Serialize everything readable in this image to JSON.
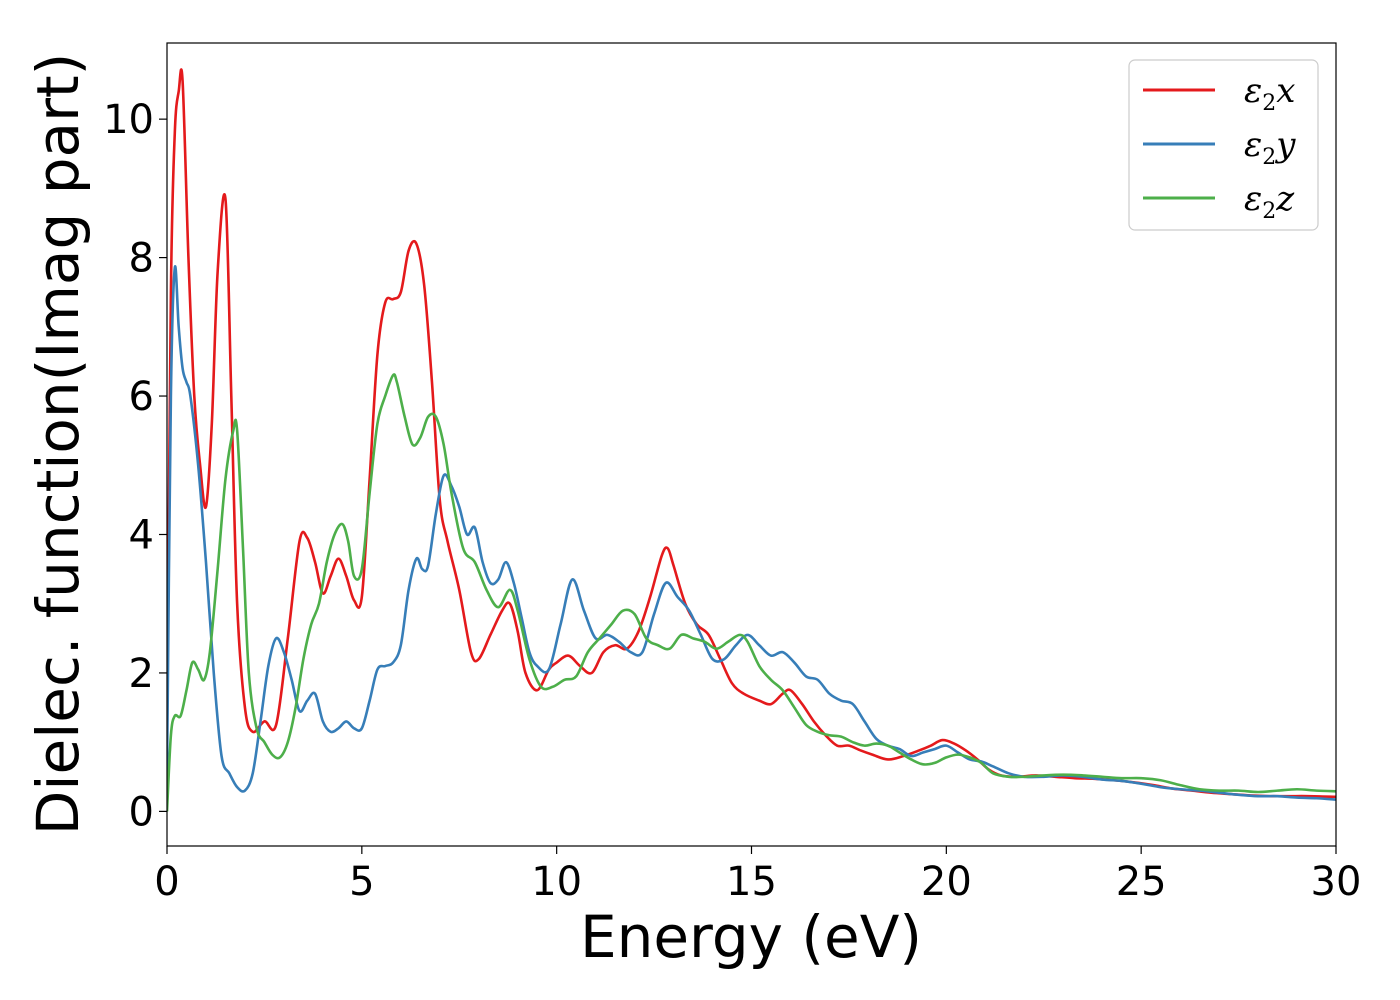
{
  "chart_data": {
    "type": "line",
    "title": "",
    "xlabel": "Energy (eV)",
    "ylabel": "Dielec. function(Imag part)",
    "xlim": [
      0,
      30
    ],
    "ylim": [
      -0.5,
      11.1
    ],
    "xticks": [
      0,
      5,
      10,
      15,
      20,
      25,
      30
    ],
    "yticks": [
      0,
      2,
      4,
      6,
      8,
      10
    ],
    "xtick_labels": [
      "0",
      "5",
      "10",
      "15",
      "20",
      "25",
      "30"
    ],
    "ytick_labels": [
      "0",
      "2",
      "4",
      "6",
      "8",
      "10"
    ],
    "grid": false,
    "legend_position": "top-right",
    "series": [
      {
        "name": "ε₂x",
        "legend_base": "ε",
        "legend_sub": "2",
        "legend_suffix": "x",
        "color": "#e41a1c",
        "x": [
          0,
          0.1,
          0.2,
          0.3,
          0.4,
          0.55,
          0.7,
          0.85,
          1.0,
          1.15,
          1.3,
          1.5,
          1.65,
          1.8,
          2.0,
          2.2,
          2.5,
          2.8,
          3.1,
          3.4,
          3.6,
          3.8,
          4.0,
          4.2,
          4.4,
          4.6,
          4.8,
          5.0,
          5.2,
          5.4,
          5.6,
          5.8,
          6.0,
          6.2,
          6.4,
          6.6,
          6.8,
          7.0,
          7.2,
          7.5,
          7.8,
          8.0,
          8.3,
          8.6,
          8.8,
          9.0,
          9.2,
          9.5,
          9.8,
          10.0,
          10.3,
          10.6,
          10.9,
          11.2,
          11.5,
          11.8,
          12.1,
          12.4,
          12.7,
          12.85,
          13.0,
          13.3,
          13.6,
          13.9,
          14.2,
          14.5,
          14.8,
          15.2,
          15.5,
          15.8,
          16.0,
          16.3,
          16.6,
          16.9,
          17.2,
          17.5,
          17.8,
          18.1,
          18.5,
          18.9,
          19.3,
          19.6,
          19.9,
          20.2,
          20.5,
          20.8,
          21.1,
          21.4,
          21.8,
          22.3,
          22.8,
          23.3,
          23.8,
          24.3,
          24.8,
          25.3,
          25.8,
          26.3,
          26.8,
          27.3,
          27.8,
          28.3,
          28.8,
          29.3,
          30.0
        ],
        "y": [
          1.0,
          7.5,
          9.8,
          10.4,
          10.55,
          8.0,
          6.0,
          5.0,
          4.4,
          5.6,
          7.8,
          8.85,
          6.0,
          3.0,
          1.5,
          1.15,
          1.3,
          1.25,
          2.5,
          3.9,
          3.95,
          3.6,
          3.15,
          3.4,
          3.65,
          3.4,
          3.05,
          3.1,
          4.8,
          6.6,
          7.35,
          7.4,
          7.5,
          8.1,
          8.2,
          7.6,
          6.2,
          4.5,
          3.9,
          3.2,
          2.3,
          2.2,
          2.55,
          2.9,
          3.0,
          2.6,
          2.0,
          1.75,
          2.05,
          2.15,
          2.25,
          2.1,
          2.0,
          2.3,
          2.4,
          2.35,
          2.6,
          3.1,
          3.7,
          3.8,
          3.55,
          3.0,
          2.7,
          2.55,
          2.2,
          1.85,
          1.7,
          1.6,
          1.55,
          1.7,
          1.75,
          1.55,
          1.3,
          1.1,
          0.95,
          0.95,
          0.88,
          0.82,
          0.75,
          0.8,
          0.88,
          0.95,
          1.03,
          0.98,
          0.88,
          0.75,
          0.6,
          0.52,
          0.5,
          0.52,
          0.5,
          0.48,
          0.47,
          0.45,
          0.42,
          0.38,
          0.33,
          0.3,
          0.27,
          0.25,
          0.23,
          0.22,
          0.22,
          0.22,
          0.21
        ]
      },
      {
        "name": "ε₂y",
        "legend_base": "ε",
        "legend_sub": "2",
        "legend_suffix": "y",
        "color": "#377eb8",
        "x": [
          0,
          0.1,
          0.2,
          0.3,
          0.4,
          0.5,
          0.6,
          0.8,
          1.0,
          1.2,
          1.4,
          1.6,
          1.8,
          2.0,
          2.2,
          2.4,
          2.6,
          2.8,
          3.0,
          3.2,
          3.4,
          3.6,
          3.8,
          4.0,
          4.2,
          4.4,
          4.6,
          4.8,
          5.0,
          5.2,
          5.4,
          5.6,
          5.8,
          6.0,
          6.2,
          6.4,
          6.55,
          6.7,
          6.9,
          7.1,
          7.3,
          7.5,
          7.7,
          7.9,
          8.1,
          8.3,
          8.5,
          8.7,
          8.9,
          9.1,
          9.3,
          9.5,
          9.8,
          10.1,
          10.4,
          10.7,
          11.0,
          11.3,
          11.6,
          11.9,
          12.2,
          12.5,
          12.8,
          13.1,
          13.4,
          13.7,
          14.0,
          14.3,
          14.6,
          14.9,
          15.2,
          15.5,
          15.8,
          16.1,
          16.4,
          16.7,
          17.0,
          17.3,
          17.6,
          17.9,
          18.2,
          18.5,
          18.8,
          19.1,
          19.4,
          19.7,
          20.0,
          20.3,
          20.6,
          20.9,
          21.2,
          21.6,
          22.0,
          22.5,
          23.0,
          23.5,
          24.0,
          24.5,
          25.0,
          25.5,
          26.0,
          26.5,
          27.0,
          27.5,
          28.0,
          28.5,
          29.0,
          29.5,
          30.0
        ],
        "y": [
          0.5,
          6.0,
          7.85,
          7.0,
          6.4,
          6.2,
          6.0,
          5.0,
          3.6,
          2.0,
          0.8,
          0.55,
          0.35,
          0.3,
          0.55,
          1.3,
          2.1,
          2.5,
          2.3,
          1.9,
          1.45,
          1.6,
          1.7,
          1.3,
          1.15,
          1.2,
          1.3,
          1.2,
          1.2,
          1.6,
          2.05,
          2.1,
          2.15,
          2.4,
          3.2,
          3.65,
          3.5,
          3.55,
          4.3,
          4.85,
          4.7,
          4.4,
          4.0,
          4.1,
          3.6,
          3.3,
          3.35,
          3.6,
          3.3,
          2.8,
          2.3,
          2.1,
          2.05,
          2.7,
          3.35,
          2.9,
          2.5,
          2.55,
          2.45,
          2.3,
          2.3,
          2.85,
          3.3,
          3.1,
          2.9,
          2.55,
          2.2,
          2.2,
          2.4,
          2.55,
          2.4,
          2.25,
          2.3,
          2.15,
          1.95,
          1.9,
          1.7,
          1.6,
          1.55,
          1.3,
          1.05,
          0.95,
          0.9,
          0.8,
          0.85,
          0.9,
          0.95,
          0.85,
          0.75,
          0.72,
          0.65,
          0.55,
          0.5,
          0.5,
          0.52,
          0.5,
          0.46,
          0.44,
          0.4,
          0.35,
          0.32,
          0.3,
          0.27,
          0.24,
          0.22,
          0.22,
          0.2,
          0.19,
          0.17
        ]
      },
      {
        "name": "ε₂z",
        "legend_base": "ε",
        "legend_sub": "2",
        "legend_suffix": "z",
        "color": "#4daf4a",
        "x": [
          0,
          0.1,
          0.2,
          0.35,
          0.5,
          0.65,
          0.8,
          0.95,
          1.1,
          1.3,
          1.5,
          1.7,
          1.8,
          1.95,
          2.1,
          2.3,
          2.5,
          2.7,
          2.9,
          3.1,
          3.3,
          3.5,
          3.7,
          3.9,
          4.1,
          4.3,
          4.5,
          4.65,
          4.8,
          5.0,
          5.2,
          5.4,
          5.6,
          5.8,
          5.9,
          6.1,
          6.3,
          6.5,
          6.7,
          6.9,
          7.1,
          7.3,
          7.6,
          7.9,
          8.2,
          8.5,
          8.8,
          9.0,
          9.3,
          9.6,
          9.9,
          10.2,
          10.5,
          10.8,
          11.1,
          11.4,
          11.7,
          12.0,
          12.3,
          12.6,
          12.9,
          13.2,
          13.5,
          13.8,
          14.1,
          14.4,
          14.7,
          14.9,
          15.2,
          15.5,
          15.8,
          16.1,
          16.4,
          16.7,
          17.0,
          17.3,
          17.6,
          17.9,
          18.2,
          18.5,
          18.8,
          19.1,
          19.4,
          19.7,
          20.0,
          20.3,
          20.6,
          20.9,
          21.2,
          21.6,
          22.0,
          22.5,
          23.0,
          23.5,
          24.0,
          24.5,
          25.0,
          25.5,
          26.0,
          26.5,
          27.0,
          27.5,
          28.0,
          28.5,
          29.0,
          29.5,
          30.0
        ],
        "y": [
          0.0,
          1.1,
          1.38,
          1.38,
          1.75,
          2.15,
          2.05,
          1.9,
          2.3,
          3.5,
          4.8,
          5.5,
          5.5,
          3.8,
          2.0,
          1.2,
          1.0,
          0.82,
          0.78,
          1.0,
          1.5,
          2.2,
          2.7,
          3.0,
          3.6,
          4.0,
          4.15,
          3.9,
          3.4,
          3.5,
          4.6,
          5.6,
          6.0,
          6.3,
          6.2,
          5.7,
          5.3,
          5.4,
          5.7,
          5.7,
          5.3,
          4.6,
          3.8,
          3.6,
          3.2,
          2.95,
          3.2,
          2.9,
          2.2,
          1.8,
          1.8,
          1.9,
          1.95,
          2.3,
          2.5,
          2.7,
          2.9,
          2.85,
          2.5,
          2.4,
          2.35,
          2.55,
          2.5,
          2.45,
          2.35,
          2.45,
          2.55,
          2.45,
          2.1,
          1.9,
          1.75,
          1.5,
          1.25,
          1.15,
          1.1,
          1.08,
          1.0,
          0.95,
          0.98,
          0.95,
          0.85,
          0.75,
          0.68,
          0.7,
          0.78,
          0.82,
          0.78,
          0.7,
          0.55,
          0.5,
          0.5,
          0.52,
          0.53,
          0.52,
          0.5,
          0.48,
          0.48,
          0.45,
          0.38,
          0.32,
          0.3,
          0.3,
          0.28,
          0.3,
          0.32,
          0.3,
          0.29
        ]
      }
    ]
  }
}
